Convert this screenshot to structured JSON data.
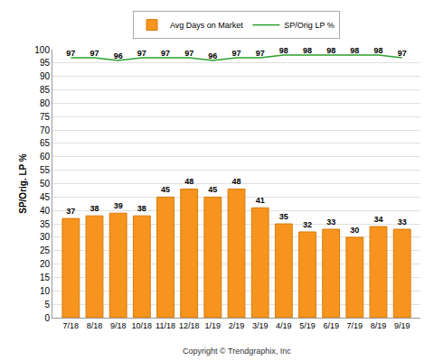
{
  "chart_data": {
    "type": "bar",
    "categories": [
      "7/18",
      "8/18",
      "9/18",
      "10/18",
      "11/18",
      "12/18",
      "1/19",
      "2/19",
      "3/19",
      "4/19",
      "5/19",
      "6/19",
      "7/19",
      "8/19",
      "9/19"
    ],
    "series": [
      {
        "name": "Avg Days on Market",
        "type": "bar",
        "color": "#f7941d",
        "values": [
          37,
          38,
          39,
          38,
          45,
          48,
          45,
          48,
          41,
          35,
          32,
          33,
          30,
          34,
          33
        ]
      },
      {
        "name": "SP/Orig LP %",
        "type": "line",
        "color": "#2ca02c",
        "values": [
          97,
          97,
          96,
          97,
          97,
          97,
          96,
          97,
          97,
          98,
          98,
          98,
          98,
          98,
          97
        ]
      }
    ],
    "y_label": "SP/Orig. LP %",
    "ylim": [
      0,
      100
    ],
    "yticks": [
      0,
      5,
      10,
      15,
      20,
      25,
      30,
      35,
      40,
      45,
      50,
      55,
      60,
      65,
      70,
      75,
      80,
      85,
      90,
      95,
      100
    ],
    "grid": true,
    "legend": "top",
    "data_labels": true,
    "annotations": [
      "Copyright © Trendgraphix, Inc"
    ]
  }
}
